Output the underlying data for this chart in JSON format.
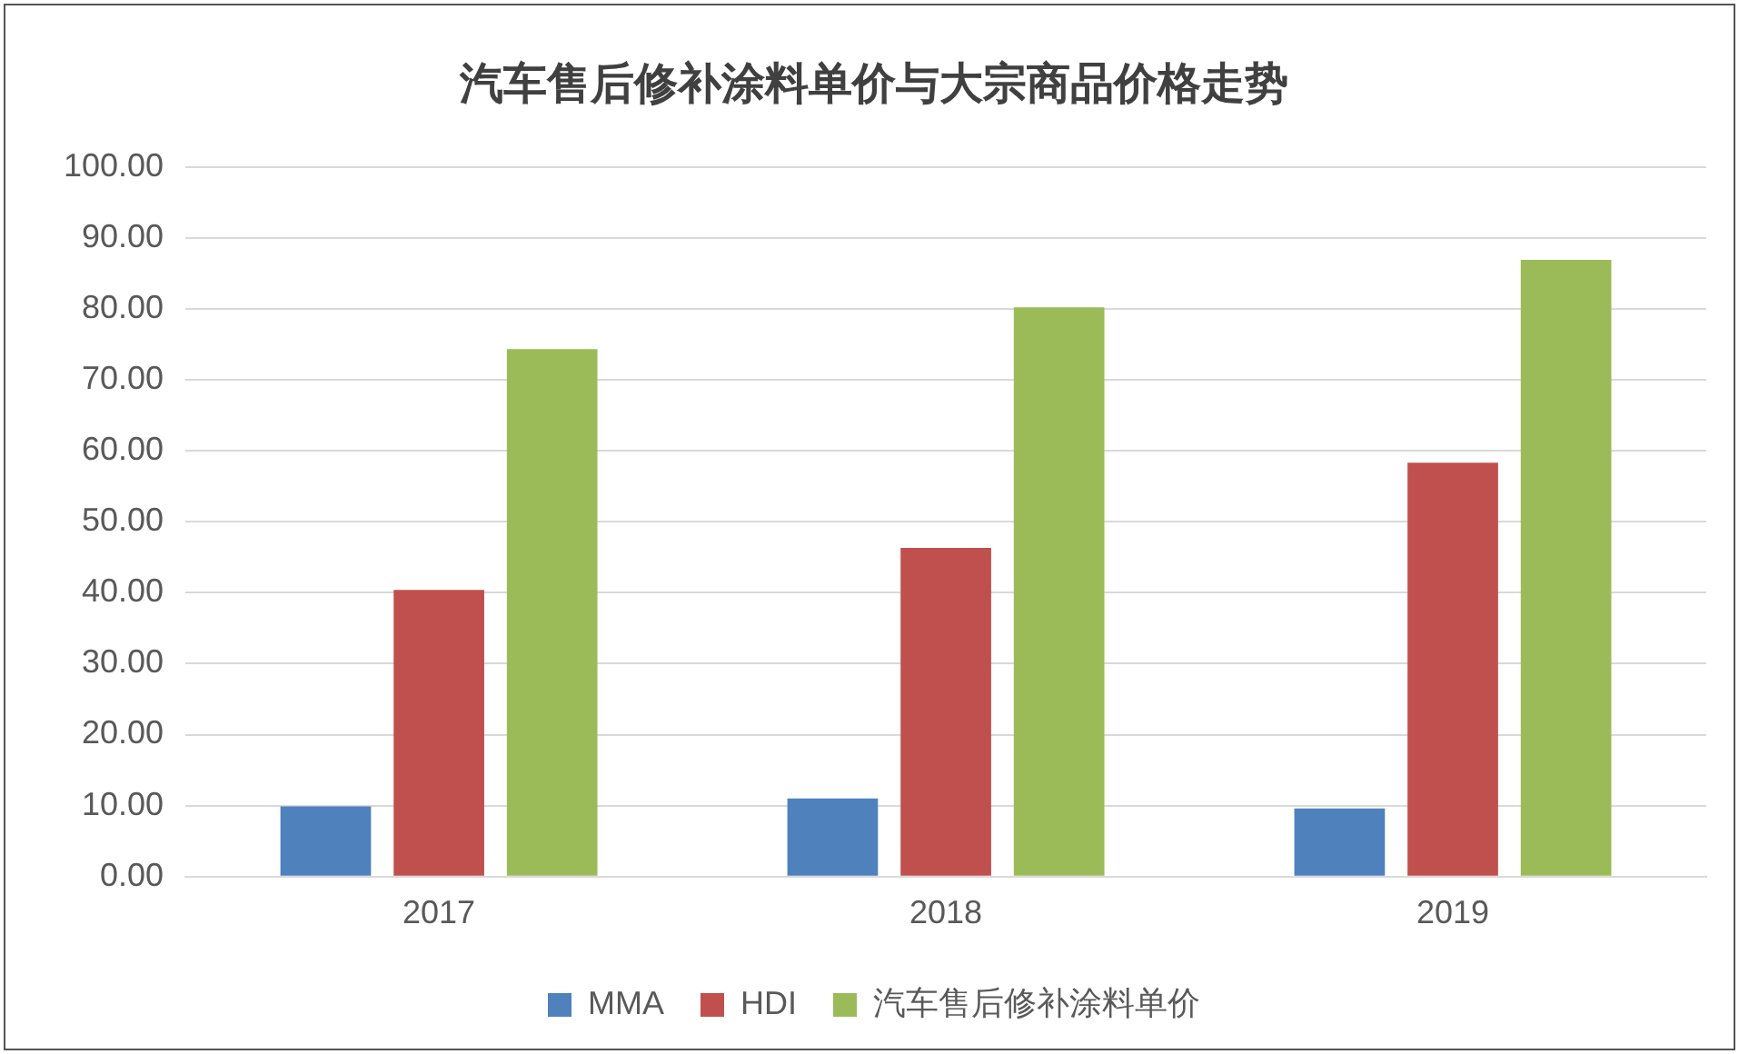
{
  "chart_data": {
    "type": "bar",
    "title": "汽车售后修补涂料单价与大宗商品价格走势",
    "categories": [
      "2017",
      "2018",
      "2019"
    ],
    "series": [
      {
        "name": "MMA",
        "color": "#4f81bd",
        "values": [
          9.9,
          11.0,
          9.6
        ]
      },
      {
        "name": "HDI",
        "color": "#c0504d",
        "values": [
          40.4,
          46.3,
          58.3
        ]
      },
      {
        "name": "汽车售后修补涂料单价",
        "color": "#9bbb59",
        "values": [
          74.3,
          80.2,
          86.9
        ]
      }
    ],
    "ylim": [
      0,
      100
    ],
    "yticks": [
      {
        "value": 0,
        "label": "0.00"
      },
      {
        "value": 10,
        "label": "10.00"
      },
      {
        "value": 20,
        "label": "20.00"
      },
      {
        "value": 30,
        "label": "30.00"
      },
      {
        "value": 40,
        "label": "40.00"
      },
      {
        "value": 50,
        "label": "50.00"
      },
      {
        "value": 60,
        "label": "60.00"
      },
      {
        "value": 70,
        "label": "70.00"
      },
      {
        "value": 80,
        "label": "80.00"
      },
      {
        "value": 90,
        "label": "90.00"
      },
      {
        "value": 100,
        "label": "100.00"
      }
    ],
    "grid": "y",
    "legend": "bottom"
  }
}
